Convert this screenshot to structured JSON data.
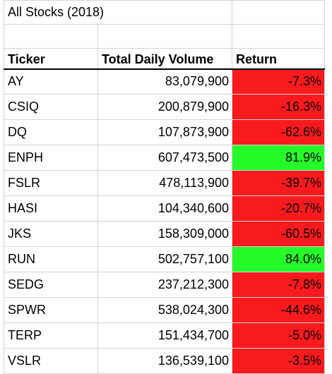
{
  "sheet": {
    "title": "All Stocks (2018)",
    "headers": {
      "ticker": "Ticker",
      "volume": "Total Daily Volume",
      "return": "Return"
    },
    "rows": [
      {
        "ticker": "AY",
        "volume": "83,079,900",
        "return": "-7.3%"
      },
      {
        "ticker": "CSIQ",
        "volume": "200,879,900",
        "return": "-16.3%"
      },
      {
        "ticker": "DQ",
        "volume": "107,873,900",
        "return": "-62.6%"
      },
      {
        "ticker": "ENPH",
        "volume": "607,473,500",
        "return": "81.9%"
      },
      {
        "ticker": "FSLR",
        "volume": "478,113,900",
        "return": "-39.7%"
      },
      {
        "ticker": "HASI",
        "volume": "104,340,600",
        "return": "-20.7%"
      },
      {
        "ticker": "JKS",
        "volume": "158,309,000",
        "return": "-60.5%"
      },
      {
        "ticker": "RUN",
        "volume": "502,757,100",
        "return": "84.0%"
      },
      {
        "ticker": "SEDG",
        "volume": "237,212,300",
        "return": "-7.8%"
      },
      {
        "ticker": "SPWR",
        "volume": "538,024,300",
        "return": "-44.6%"
      },
      {
        "ticker": "TERP",
        "volume": "151,434,700",
        "return": "-5.0%"
      },
      {
        "ticker": "VSLR",
        "volume": "136,539,100",
        "return": "-3.5%"
      }
    ],
    "colors": {
      "negative_fill": "#f91a1d",
      "positive_fill": "#26fb2a",
      "gridline": "#d4d4d4",
      "header_rule": "#000000"
    }
  }
}
